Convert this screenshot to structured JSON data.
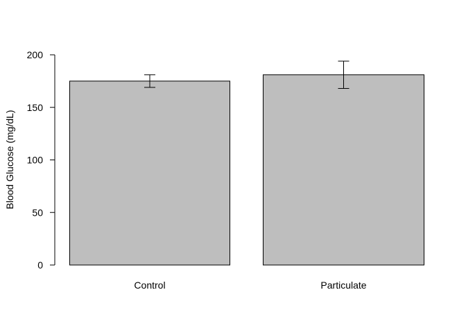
{
  "chart_data": {
    "type": "bar",
    "title": "",
    "xlabel": "",
    "ylabel": "Blood Glucose (mg/dL)",
    "categories": [
      "Control",
      "Particulate"
    ],
    "values": [
      175,
      181
    ],
    "error_low": [
      169,
      168
    ],
    "error_high": [
      181,
      194
    ],
    "ylim": [
      0,
      200
    ],
    "yticks": [
      "0",
      "50",
      "100",
      "150",
      "200"
    ],
    "grid": false,
    "legend": "none",
    "bar_color": "#bebebe",
    "edge_color": "#000000"
  }
}
